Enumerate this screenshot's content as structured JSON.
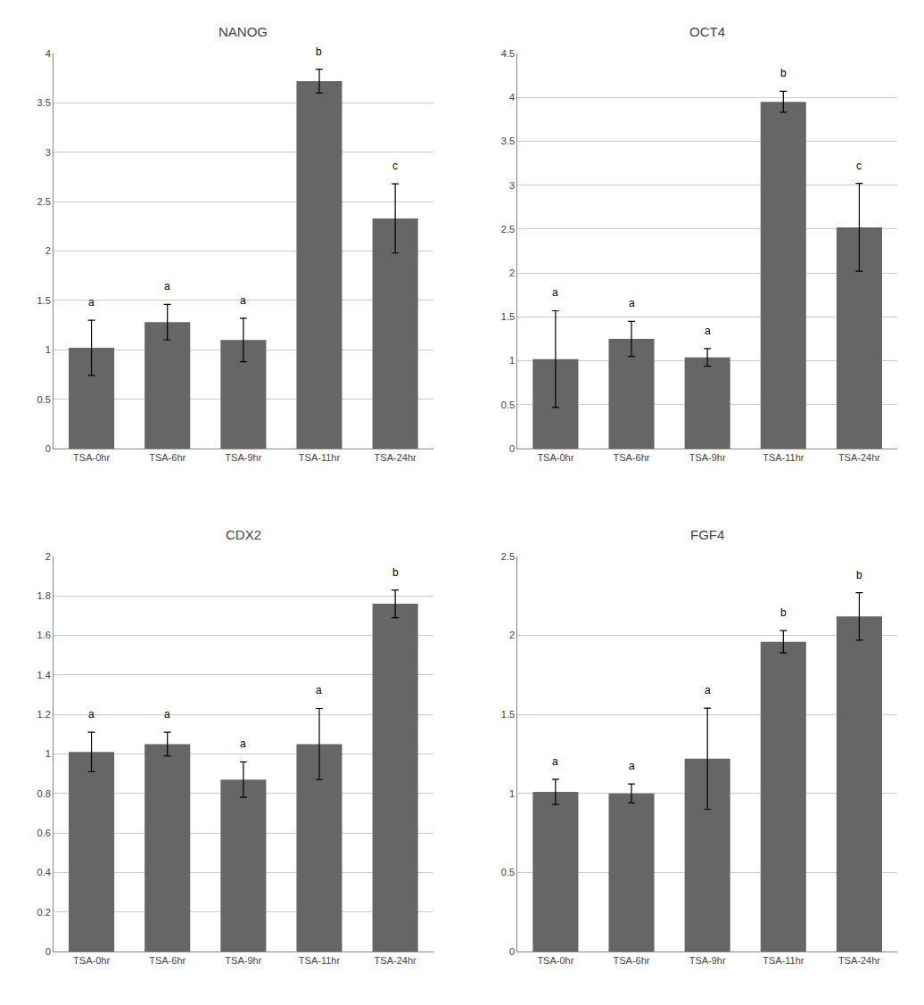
{
  "chart_data": [
    {
      "type": "bar",
      "title": "NANOG",
      "categories": [
        "TSA-0hr",
        "TSA-6hr",
        "TSA-9hr",
        "TSA-11hr",
        "TSA-24hr"
      ],
      "values": [
        1.02,
        1.28,
        1.1,
        3.72,
        2.33
      ],
      "errors": [
        0.28,
        0.18,
        0.22,
        0.12,
        0.35
      ],
      "annotations": [
        {
          "x": "TSA-0hr",
          "text": "a"
        },
        {
          "x": "TSA-6hr",
          "text": "a"
        },
        {
          "x": "TSA-9hr",
          "text": "a"
        },
        {
          "x": "TSA-11hr",
          "text": "b"
        },
        {
          "x": "TSA-24hr",
          "text": "c"
        }
      ],
      "color": "#666666",
      "ylim": [
        0,
        4.0
      ],
      "yticks": [
        0,
        0.5,
        1,
        1.5,
        2,
        2.5,
        3,
        3.5,
        4
      ],
      "grid": true
    },
    {
      "type": "bar",
      "title": "OCT4",
      "categories": [
        "TSA-0hr",
        "TSA-6hr",
        "TSA-9hr",
        "TSA-11hr",
        "TSA-24hr"
      ],
      "values": [
        1.02,
        1.25,
        1.04,
        3.95,
        2.52
      ],
      "errors": [
        0.55,
        0.2,
        0.1,
        0.12,
        0.5
      ],
      "annotations": [
        {
          "x": "TSA-0hr",
          "text": "a"
        },
        {
          "x": "TSA-6hr",
          "text": "a"
        },
        {
          "x": "TSA-9hr",
          "text": "a"
        },
        {
          "x": "TSA-11hr",
          "text": "b"
        },
        {
          "x": "TSA-24hr",
          "text": "c"
        }
      ],
      "color": "#666666",
      "ylim": [
        0,
        4.5
      ],
      "yticks": [
        0,
        0.5,
        1,
        1.5,
        2,
        2.5,
        3,
        3.5,
        4,
        4.5
      ],
      "grid": true
    },
    {
      "type": "bar",
      "title": "CDX2",
      "categories": [
        "TSA-0hr",
        "TSA-6hr",
        "TSA-9hr",
        "TSA-11hr",
        "TSA-24hr"
      ],
      "values": [
        1.01,
        1.05,
        0.87,
        1.05,
        1.76
      ],
      "errors": [
        0.1,
        0.06,
        0.09,
        0.18,
        0.07
      ],
      "annotations": [
        {
          "x": "TSA-0hr",
          "text": "a"
        },
        {
          "x": "TSA-6hr",
          "text": "a"
        },
        {
          "x": "TSA-9hr",
          "text": "a"
        },
        {
          "x": "TSA-11hr",
          "text": "a"
        },
        {
          "x": "TSA-24hr",
          "text": "b"
        }
      ],
      "color": "#666666",
      "ylim": [
        0,
        2.0
      ],
      "yticks": [
        0,
        0.2,
        0.4,
        0.6,
        0.8,
        1,
        1.2,
        1.4,
        1.6,
        1.8,
        2
      ],
      "grid": true
    },
    {
      "type": "bar",
      "title": "FGF4",
      "categories": [
        "TSA-0hr",
        "TSA-6hr",
        "TSA-9hr",
        "TSA-11hr",
        "TSA-24hr"
      ],
      "values": [
        1.01,
        1.0,
        1.22,
        1.96,
        2.12
      ],
      "errors": [
        0.08,
        0.06,
        0.32,
        0.07,
        0.15
      ],
      "annotations": [
        {
          "x": "TSA-0hr",
          "text": "a"
        },
        {
          "x": "TSA-6hr",
          "text": "a"
        },
        {
          "x": "TSA-9hr",
          "text": "a"
        },
        {
          "x": "TSA-11hr",
          "text": "b"
        },
        {
          "x": "TSA-24hr",
          "text": "b"
        }
      ],
      "color": "#666666",
      "ylim": [
        0,
        2.5
      ],
      "yticks": [
        0,
        0.5,
        1,
        1.5,
        2,
        2.5
      ],
      "grid": true
    }
  ]
}
